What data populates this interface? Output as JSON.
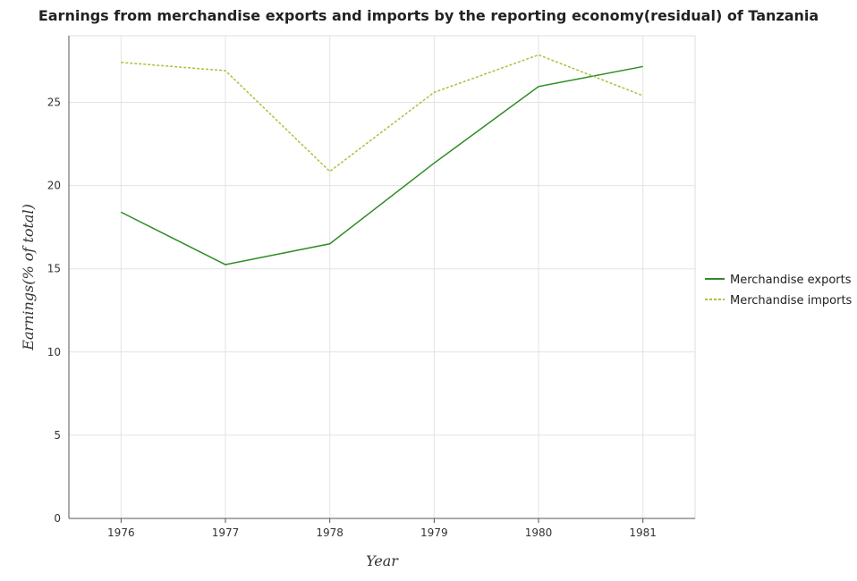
{
  "chart_data": {
    "type": "line",
    "title": "Earnings from merchandise exports and imports by the reporting economy(residual) of Tanzania",
    "xlabel": "Year",
    "ylabel": "Earnings(% of total)",
    "categories": [
      "1976",
      "1977",
      "1978",
      "1979",
      "1980",
      "1981"
    ],
    "ylim": [
      0,
      29
    ],
    "yticks": [
      0,
      5,
      10,
      15,
      20,
      25
    ],
    "ytick_labels": [
      "0",
      "5",
      "10",
      "15",
      "20",
      "25"
    ],
    "grid": true,
    "legend_position": "right",
    "series": [
      {
        "name": "Merchandise exports",
        "color": "#2e8b24",
        "style": "solid",
        "values": [
          18.4,
          15.25,
          16.5,
          21.35,
          25.95,
          27.15
        ]
      },
      {
        "name": "Merchandise imports",
        "color": "#a8c23a",
        "style": "dashed",
        "values": [
          27.4,
          26.9,
          20.85,
          25.6,
          27.85,
          25.4
        ]
      }
    ]
  }
}
